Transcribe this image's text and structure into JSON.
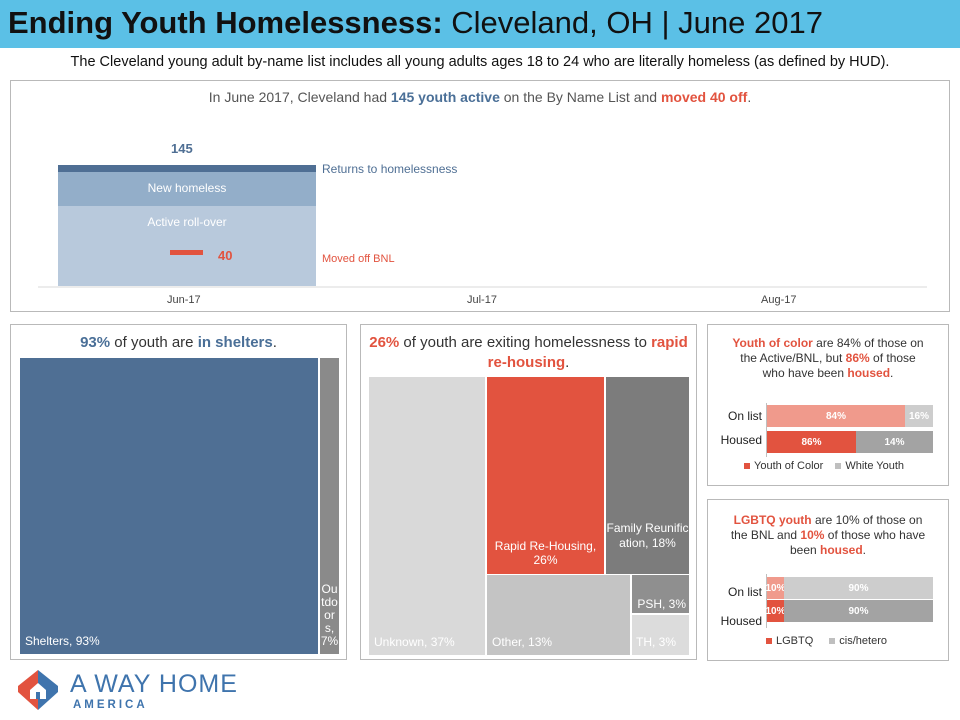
{
  "header": {
    "title_bold": "Ending Youth Homelessness:",
    "title_rest": " Cleveland, OH | June 2017"
  },
  "intro": "The Cleveland young adult by-name list includes all young adults ages 18 to 24 who are literally homeless (as defined by HUD).",
  "bnl": {
    "title_pre": "In June 2017, Cleveland had ",
    "title_active": "145 youth active",
    "title_mid": " on the By Name List and ",
    "title_moved": "moved 40  off",
    "title_end": ".",
    "total_label": "145",
    "moved_label": "40",
    "returns_legend": "Returns to homelessness",
    "moved_legend": "Moved off BNL",
    "new_homeless_label": "New homeless",
    "rollover_label": "Active roll-over",
    "x_ticks": [
      "Jun-17",
      "Jul-17",
      "Aug-17"
    ]
  },
  "shelters": {
    "title_pct": "93%",
    "title_mid": " of youth are ",
    "title_where": "in shelters",
    "title_end": ".",
    "shelters_label": "Shelters, 93%",
    "outdoors_label": "Outdoors, 7%"
  },
  "exits": {
    "title_pct": "26%",
    "title_mid": " of youth are exiting homelessness to ",
    "title_rrh": "rapid re-housing",
    "title_end": ".",
    "unknown_label": "Unknown, 37%",
    "rrh_label": "Rapid Re-Housing, 26%",
    "family_label": "Family Reunification, 18%",
    "other_label": "Other, 13%",
    "psh_label": "PSH, 3%",
    "th_label": "TH, 3%"
  },
  "yoc": {
    "title_a": "Youth of color",
    "title_b": " are 84% of those on the Active/BNL, but ",
    "title_c": "86%",
    "title_d": " of those who have been ",
    "title_e": "housed",
    "title_f": ".",
    "row1": "On list",
    "row2": "Housed",
    "onlist_a": "84%",
    "onlist_b": "16%",
    "housed_a": "86%",
    "housed_b": "14%",
    "legend_a": "Youth of Color",
    "legend_b": "White Youth"
  },
  "lgbtq": {
    "title_a": "LGBTQ youth",
    "title_b": " are 10% of those on the BNL and ",
    "title_c": "10%",
    "title_d": " of those who have been ",
    "title_e": "housed",
    "title_f": ".",
    "row1": "On list",
    "row2": "Housed",
    "onlist_a": "10%",
    "onlist_b": "90%",
    "housed_a": "10%",
    "housed_b": "90%",
    "legend_a": "LGBTQ",
    "legend_b": "cis/hetero"
  },
  "logo": {
    "name": "A WAY HOME",
    "sub": "AMERICA"
  },
  "colors": {
    "header": "#5bc0e6",
    "shelter_blue": "#4f6f94",
    "accent_red": "#e2533f",
    "rollover": "#b8c9dc",
    "new_homeless": "#93aec9",
    "returns": "#4f6f94"
  },
  "chart_data": [
    {
      "type": "bar",
      "stacked": true,
      "categories": [
        "Jun-17",
        "Jul-17",
        "Aug-17"
      ],
      "series": [
        {
          "name": "Active roll-over",
          "values": [
            105,
            null,
            null
          ]
        },
        {
          "name": "New homeless",
          "values": [
            36,
            null,
            null
          ]
        },
        {
          "name": "Returns to homelessness",
          "values": [
            4,
            null,
            null
          ]
        },
        {
          "name": "Moved off BNL",
          "values": [
            40,
            null,
            null
          ]
        }
      ],
      "total": [
        145,
        null,
        null
      ],
      "grid": false,
      "legend": "right"
    },
    {
      "type": "heatmap",
      "subtype": "treemap",
      "labels": [
        "Shelters",
        "Outdoors"
      ],
      "values": [
        93,
        7
      ],
      "unit": "%"
    },
    {
      "type": "heatmap",
      "subtype": "treemap",
      "labels": [
        "Unknown",
        "Rapid Re-Housing",
        "Family Reunification",
        "Other",
        "PSH",
        "TH"
      ],
      "values": [
        37,
        26,
        18,
        13,
        3,
        3
      ],
      "unit": "%"
    },
    {
      "type": "bar",
      "orientation": "horizontal",
      "stacked": true,
      "percent": true,
      "categories": [
        "On list",
        "Housed"
      ],
      "series": [
        {
          "name": "Youth of Color",
          "values": [
            84,
            86
          ]
        },
        {
          "name": "White Youth",
          "values": [
            16,
            14
          ]
        }
      ],
      "legend": "bottom"
    },
    {
      "type": "bar",
      "orientation": "horizontal",
      "stacked": true,
      "percent": true,
      "categories": [
        "On list",
        "Housed"
      ],
      "series": [
        {
          "name": "LGBTQ",
          "values": [
            10,
            10
          ]
        },
        {
          "name": "cis/hetero",
          "values": [
            90,
            90
          ]
        }
      ],
      "legend": "bottom"
    }
  ]
}
